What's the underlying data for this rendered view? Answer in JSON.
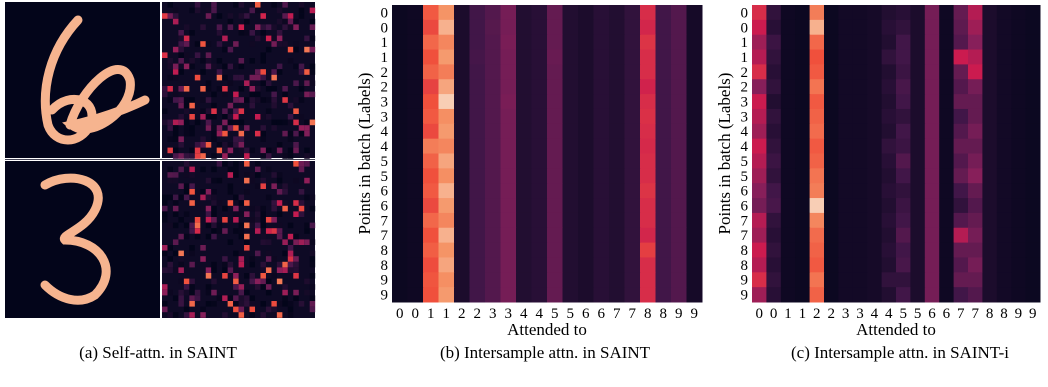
{
  "panels": [
    {
      "caption": "(a) Self-attn. in SAINT"
    },
    {
      "caption": "(b) Intersample attn. in SAINT",
      "heatmap": {
        "ylabel": "Points in batch (Labels)",
        "xlabel": "Attended to",
        "row_labels": [
          "0",
          "0",
          "1",
          "1",
          "2",
          "2",
          "3",
          "3",
          "4",
          "4",
          "5",
          "5",
          "6",
          "6",
          "7",
          "7",
          "8",
          "8",
          "9",
          "9"
        ],
        "col_labels": [
          "0",
          "0",
          "1",
          "1",
          "2",
          "2",
          "3",
          "3",
          "4",
          "4",
          "5",
          "5",
          "6",
          "6",
          "7",
          "7",
          "8",
          "8",
          "9",
          "9"
        ],
        "values": [
          [
            0.03,
            0.04,
            0.72,
            0.85,
            0.08,
            0.2,
            0.25,
            0.35,
            0.1,
            0.12,
            0.3,
            0.1,
            0.08,
            0.12,
            0.1,
            0.15,
            0.6,
            0.2,
            0.25,
            0.06
          ],
          [
            0.03,
            0.04,
            0.68,
            0.9,
            0.08,
            0.2,
            0.26,
            0.35,
            0.1,
            0.12,
            0.3,
            0.1,
            0.08,
            0.12,
            0.1,
            0.15,
            0.58,
            0.2,
            0.25,
            0.06
          ],
          [
            0.03,
            0.04,
            0.75,
            0.82,
            0.08,
            0.2,
            0.25,
            0.36,
            0.1,
            0.12,
            0.3,
            0.1,
            0.08,
            0.12,
            0.1,
            0.15,
            0.62,
            0.2,
            0.25,
            0.06
          ],
          [
            0.03,
            0.04,
            0.7,
            0.86,
            0.08,
            0.21,
            0.25,
            0.35,
            0.1,
            0.12,
            0.31,
            0.1,
            0.08,
            0.12,
            0.1,
            0.15,
            0.6,
            0.2,
            0.25,
            0.06
          ],
          [
            0.03,
            0.04,
            0.74,
            0.8,
            0.08,
            0.2,
            0.25,
            0.35,
            0.1,
            0.12,
            0.3,
            0.1,
            0.08,
            0.12,
            0.1,
            0.15,
            0.6,
            0.2,
            0.25,
            0.06
          ],
          [
            0.03,
            0.04,
            0.66,
            0.88,
            0.08,
            0.2,
            0.25,
            0.35,
            0.1,
            0.12,
            0.3,
            0.1,
            0.08,
            0.12,
            0.1,
            0.15,
            0.57,
            0.2,
            0.25,
            0.06
          ],
          [
            0.03,
            0.04,
            0.7,
            0.95,
            0.08,
            0.2,
            0.25,
            0.36,
            0.1,
            0.12,
            0.3,
            0.1,
            0.08,
            0.12,
            0.1,
            0.15,
            0.6,
            0.2,
            0.25,
            0.06
          ],
          [
            0.03,
            0.04,
            0.72,
            0.84,
            0.08,
            0.2,
            0.25,
            0.35,
            0.1,
            0.12,
            0.3,
            0.1,
            0.08,
            0.12,
            0.1,
            0.15,
            0.61,
            0.2,
            0.25,
            0.06
          ],
          [
            0.03,
            0.04,
            0.68,
            0.86,
            0.08,
            0.2,
            0.25,
            0.35,
            0.1,
            0.12,
            0.3,
            0.1,
            0.08,
            0.12,
            0.1,
            0.15,
            0.6,
            0.2,
            0.25,
            0.06
          ],
          [
            0.03,
            0.04,
            0.8,
            0.82,
            0.08,
            0.2,
            0.25,
            0.35,
            0.1,
            0.12,
            0.3,
            0.1,
            0.08,
            0.12,
            0.1,
            0.15,
            0.59,
            0.2,
            0.25,
            0.06
          ],
          [
            0.03,
            0.04,
            0.74,
            0.88,
            0.08,
            0.2,
            0.25,
            0.35,
            0.1,
            0.12,
            0.3,
            0.1,
            0.08,
            0.12,
            0.1,
            0.15,
            0.6,
            0.2,
            0.25,
            0.06
          ],
          [
            0.03,
            0.04,
            0.7,
            0.84,
            0.08,
            0.2,
            0.25,
            0.35,
            0.1,
            0.12,
            0.3,
            0.1,
            0.08,
            0.12,
            0.1,
            0.15,
            0.6,
            0.2,
            0.25,
            0.06
          ],
          [
            0.03,
            0.04,
            0.72,
            0.9,
            0.08,
            0.2,
            0.25,
            0.35,
            0.1,
            0.12,
            0.3,
            0.1,
            0.08,
            0.12,
            0.1,
            0.15,
            0.62,
            0.2,
            0.25,
            0.06
          ],
          [
            0.03,
            0.04,
            0.68,
            0.86,
            0.08,
            0.2,
            0.25,
            0.35,
            0.1,
            0.12,
            0.3,
            0.1,
            0.08,
            0.12,
            0.1,
            0.15,
            0.6,
            0.2,
            0.25,
            0.06
          ],
          [
            0.03,
            0.04,
            0.75,
            0.82,
            0.08,
            0.2,
            0.25,
            0.35,
            0.1,
            0.12,
            0.3,
            0.1,
            0.08,
            0.12,
            0.1,
            0.15,
            0.6,
            0.2,
            0.25,
            0.06
          ],
          [
            0.03,
            0.04,
            0.7,
            0.9,
            0.08,
            0.2,
            0.25,
            0.35,
            0.1,
            0.12,
            0.3,
            0.1,
            0.08,
            0.12,
            0.1,
            0.15,
            0.58,
            0.2,
            0.25,
            0.06
          ],
          [
            0.03,
            0.04,
            0.73,
            0.85,
            0.08,
            0.2,
            0.25,
            0.35,
            0.1,
            0.12,
            0.3,
            0.1,
            0.08,
            0.12,
            0.1,
            0.15,
            0.65,
            0.2,
            0.25,
            0.06
          ],
          [
            0.03,
            0.04,
            0.69,
            0.88,
            0.08,
            0.2,
            0.25,
            0.35,
            0.1,
            0.12,
            0.3,
            0.1,
            0.08,
            0.12,
            0.1,
            0.15,
            0.6,
            0.2,
            0.25,
            0.06
          ],
          [
            0.03,
            0.04,
            0.71,
            0.84,
            0.08,
            0.2,
            0.25,
            0.35,
            0.1,
            0.12,
            0.3,
            0.1,
            0.08,
            0.12,
            0.1,
            0.15,
            0.6,
            0.2,
            0.25,
            0.06
          ],
          [
            0.03,
            0.04,
            0.7,
            0.86,
            0.08,
            0.2,
            0.25,
            0.35,
            0.1,
            0.12,
            0.3,
            0.1,
            0.08,
            0.12,
            0.1,
            0.15,
            0.6,
            0.2,
            0.25,
            0.06
          ]
        ]
      }
    },
    {
      "caption": "(c) Intersample attn. in SAINT-i",
      "heatmap": {
        "ylabel": "Points in batch (Labels)",
        "xlabel": "Attended to",
        "row_labels": [
          "0",
          "0",
          "1",
          "1",
          "2",
          "2",
          "3",
          "3",
          "4",
          "4",
          "5",
          "5",
          "6",
          "6",
          "7",
          "7",
          "8",
          "8",
          "9",
          "9"
        ],
        "col_labels": [
          "0",
          "0",
          "1",
          "1",
          "2",
          "2",
          "3",
          "3",
          "4",
          "4",
          "5",
          "5",
          "6",
          "6",
          "7",
          "7",
          "8",
          "8",
          "9",
          "9"
        ],
        "values": [
          [
            0.6,
            0.15,
            0.04,
            0.03,
            0.8,
            0.03,
            0.05,
            0.05,
            0.06,
            0.1,
            0.12,
            0.08,
            0.35,
            0.04,
            0.3,
            0.5,
            0.08,
            0.05,
            0.04,
            0.03
          ],
          [
            0.55,
            0.12,
            0.04,
            0.03,
            0.9,
            0.03,
            0.05,
            0.05,
            0.06,
            0.12,
            0.15,
            0.08,
            0.35,
            0.04,
            0.28,
            0.45,
            0.08,
            0.05,
            0.04,
            0.03
          ],
          [
            0.45,
            0.18,
            0.04,
            0.03,
            0.75,
            0.03,
            0.05,
            0.05,
            0.06,
            0.1,
            0.2,
            0.08,
            0.35,
            0.04,
            0.25,
            0.4,
            0.08,
            0.05,
            0.04,
            0.03
          ],
          [
            0.5,
            0.15,
            0.04,
            0.03,
            0.7,
            0.03,
            0.05,
            0.05,
            0.06,
            0.15,
            0.2,
            0.08,
            0.35,
            0.04,
            0.55,
            0.5,
            0.08,
            0.05,
            0.04,
            0.03
          ],
          [
            0.6,
            0.12,
            0.04,
            0.03,
            0.72,
            0.03,
            0.05,
            0.05,
            0.06,
            0.1,
            0.18,
            0.08,
            0.35,
            0.04,
            0.3,
            0.55,
            0.08,
            0.05,
            0.04,
            0.03
          ],
          [
            0.4,
            0.15,
            0.04,
            0.03,
            0.78,
            0.03,
            0.05,
            0.05,
            0.06,
            0.12,
            0.22,
            0.08,
            0.35,
            0.04,
            0.25,
            0.35,
            0.08,
            0.05,
            0.04,
            0.03
          ],
          [
            0.55,
            0.1,
            0.04,
            0.03,
            0.72,
            0.03,
            0.05,
            0.05,
            0.06,
            0.1,
            0.2,
            0.08,
            0.35,
            0.04,
            0.3,
            0.3,
            0.08,
            0.05,
            0.04,
            0.03
          ],
          [
            0.5,
            0.15,
            0.04,
            0.03,
            0.74,
            0.03,
            0.05,
            0.05,
            0.06,
            0.12,
            0.15,
            0.08,
            0.35,
            0.04,
            0.2,
            0.3,
            0.08,
            0.05,
            0.04,
            0.03
          ],
          [
            0.45,
            0.12,
            0.04,
            0.03,
            0.76,
            0.03,
            0.05,
            0.05,
            0.06,
            0.1,
            0.2,
            0.08,
            0.35,
            0.04,
            0.25,
            0.35,
            0.08,
            0.05,
            0.04,
            0.03
          ],
          [
            0.55,
            0.15,
            0.04,
            0.03,
            0.72,
            0.03,
            0.05,
            0.05,
            0.06,
            0.15,
            0.18,
            0.08,
            0.35,
            0.04,
            0.3,
            0.3,
            0.08,
            0.05,
            0.04,
            0.03
          ],
          [
            0.5,
            0.18,
            0.04,
            0.03,
            0.74,
            0.03,
            0.05,
            0.05,
            0.06,
            0.12,
            0.25,
            0.08,
            0.35,
            0.04,
            0.25,
            0.35,
            0.08,
            0.05,
            0.04,
            0.03
          ],
          [
            0.45,
            0.15,
            0.04,
            0.03,
            0.78,
            0.03,
            0.05,
            0.05,
            0.06,
            0.1,
            0.2,
            0.08,
            0.35,
            0.04,
            0.3,
            0.4,
            0.08,
            0.05,
            0.04,
            0.03
          ],
          [
            0.4,
            0.2,
            0.04,
            0.03,
            0.8,
            0.03,
            0.05,
            0.05,
            0.06,
            0.12,
            0.15,
            0.08,
            0.35,
            0.04,
            0.2,
            0.3,
            0.08,
            0.05,
            0.04,
            0.03
          ],
          [
            0.35,
            0.22,
            0.04,
            0.03,
            0.95,
            0.03,
            0.05,
            0.05,
            0.06,
            0.1,
            0.18,
            0.08,
            0.35,
            0.04,
            0.15,
            0.25,
            0.08,
            0.05,
            0.04,
            0.03
          ],
          [
            0.5,
            0.15,
            0.04,
            0.03,
            0.82,
            0.03,
            0.05,
            0.05,
            0.06,
            0.12,
            0.2,
            0.08,
            0.35,
            0.04,
            0.25,
            0.3,
            0.08,
            0.05,
            0.04,
            0.03
          ],
          [
            0.45,
            0.12,
            0.04,
            0.03,
            0.76,
            0.03,
            0.05,
            0.05,
            0.06,
            0.1,
            0.25,
            0.08,
            0.35,
            0.04,
            0.5,
            0.35,
            0.08,
            0.05,
            0.04,
            0.03
          ],
          [
            0.55,
            0.15,
            0.04,
            0.03,
            0.74,
            0.03,
            0.05,
            0.05,
            0.06,
            0.12,
            0.2,
            0.08,
            0.35,
            0.04,
            0.3,
            0.3,
            0.08,
            0.05,
            0.04,
            0.03
          ],
          [
            0.5,
            0.12,
            0.04,
            0.03,
            0.72,
            0.03,
            0.05,
            0.05,
            0.06,
            0.1,
            0.22,
            0.08,
            0.35,
            0.04,
            0.25,
            0.35,
            0.08,
            0.05,
            0.04,
            0.03
          ],
          [
            0.6,
            0.15,
            0.04,
            0.03,
            0.78,
            0.03,
            0.05,
            0.05,
            0.06,
            0.15,
            0.15,
            0.08,
            0.35,
            0.04,
            0.3,
            0.3,
            0.08,
            0.05,
            0.04,
            0.03
          ],
          [
            0.45,
            0.12,
            0.04,
            0.03,
            0.74,
            0.03,
            0.05,
            0.05,
            0.06,
            0.1,
            0.2,
            0.08,
            0.35,
            0.04,
            0.2,
            0.25,
            0.08,
            0.05,
            0.04,
            0.03
          ]
        ]
      }
    }
  ]
}
